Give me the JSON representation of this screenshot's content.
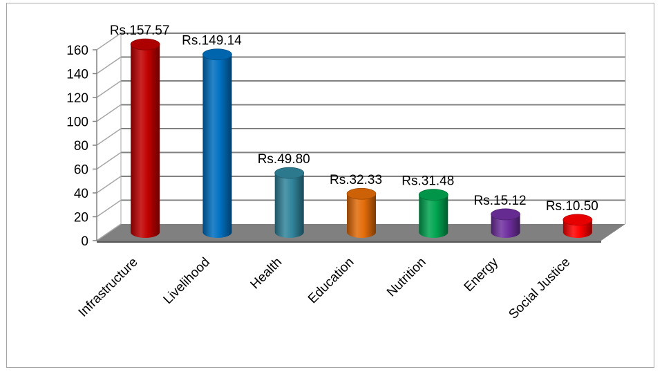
{
  "chart_data": {
    "type": "bar",
    "title": "",
    "xlabel": "",
    "ylabel": "",
    "ylim": [
      0,
      160
    ],
    "y_ticks": [
      0,
      20,
      40,
      60,
      80,
      100,
      120,
      140,
      160
    ],
    "grid": true,
    "legend": "none",
    "style": "3d-cylinder",
    "categories": [
      "Infrastructure",
      "Livelihood",
      "Health",
      "Education",
      "Nutrition",
      "Energy",
      "Social Justice"
    ],
    "values": [
      157.57,
      149.14,
      49.8,
      32.33,
      31.48,
      15.12,
      10.5
    ],
    "data_labels": [
      "Rs.157.57",
      "Rs.149.14",
      "Rs.49.80",
      "Rs.32.33",
      "Rs.31.48",
      "Rs.15.12",
      "Rs.10.50"
    ],
    "colors": [
      "#c00000",
      "#0070c0",
      "#31859c",
      "#e36c09",
      "#00a550",
      "#7030a0",
      "#ff0000"
    ]
  }
}
